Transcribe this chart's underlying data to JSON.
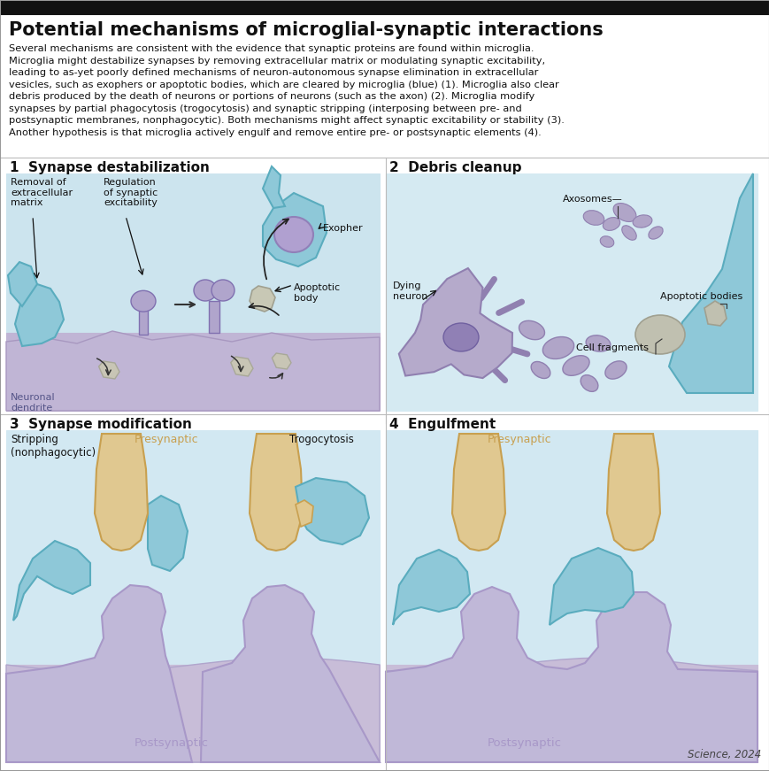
{
  "title": "Potential mechanisms of microglial-synaptic interactions",
  "body_lines": [
    "Several mechanisms are consistent with the evidence that synaptic proteins are found within microglia.",
    "Microglia might destabilize synapses by removing extracellular matrix or modulating synaptic excitability,",
    "leading to as-yet poorly defined mechanisms of neuron-autonomous synapse elimination in extracellular",
    "vesicles, such as exophers or apoptotic bodies, which are cleared by microglia (blue) (1). Microglia also clear",
    "debris produced by the death of neurons or portions of neurons (such as the axon) (2). Microglia modify",
    "synapses by partial phagocytosis (trogocytosis) and synaptic stripping (interposing between pre- and",
    "postsynaptic membranes, nonphagocytic). Both mechanisms might affect synaptic excitability or stability (3).",
    "Another hypothesis is that microglia actively engulf and remove entire pre- or postsynaptic elements (4)."
  ],
  "panel1_title": "1  Synapse destabilization",
  "panel2_title": "2  Debris cleanup",
  "panel3_title": "3  Synapse modification",
  "panel4_title": "4  Engulfment",
  "credit": "Science, 2024",
  "bg": "#ffffff",
  "topbar": "#111111",
  "col_teal": "#8ec8d8",
  "col_teal_dark": "#5aacbe",
  "col_purple_light": "#c0b8d8",
  "col_purple_mid": "#a898c8",
  "col_purple_dark": "#8070a8",
  "col_tan": "#e0c890",
  "col_tan_dark": "#c8a050",
  "col_gray_frag": "#c8c8b8",
  "col_gray_frag_dark": "#a0a090",
  "col_bg_blue": "#d0e8f0",
  "col_bg_purple": "#c8bcd8",
  "col_text": "#111111",
  "col_pre_label": "#c8a050"
}
